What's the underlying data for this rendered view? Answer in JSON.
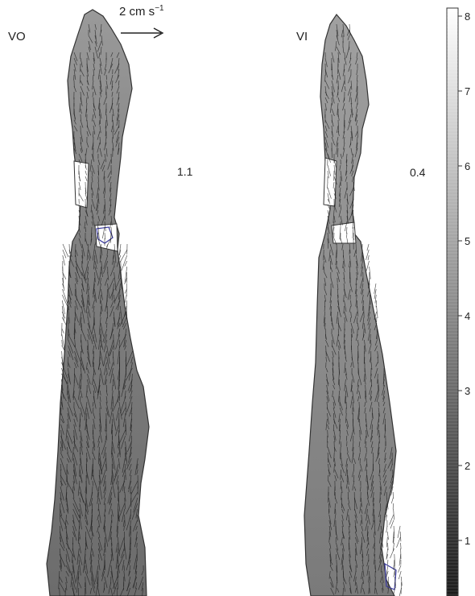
{
  "panels": [
    {
      "label": "VO",
      "value": "1.1"
    },
    {
      "label": "VI",
      "value": "0.4"
    }
  ],
  "scale_arrow": {
    "value": "2",
    "unit": "cm s",
    "exponent": "−1"
  },
  "colorbar": {
    "ticks": [
      "8",
      "7",
      "6",
      "5",
      "4",
      "3",
      "2",
      "1"
    ],
    "range": [
      0,
      8
    ],
    "gradient": [
      "#1a1a1a",
      "#ffffff"
    ]
  },
  "colors": {
    "outline": "#333333",
    "vector": "#1e1e1e",
    "fill_dark": "#6a6a6a",
    "fill_light": "#b8b8b8",
    "accent": "#3a3aa0"
  }
}
